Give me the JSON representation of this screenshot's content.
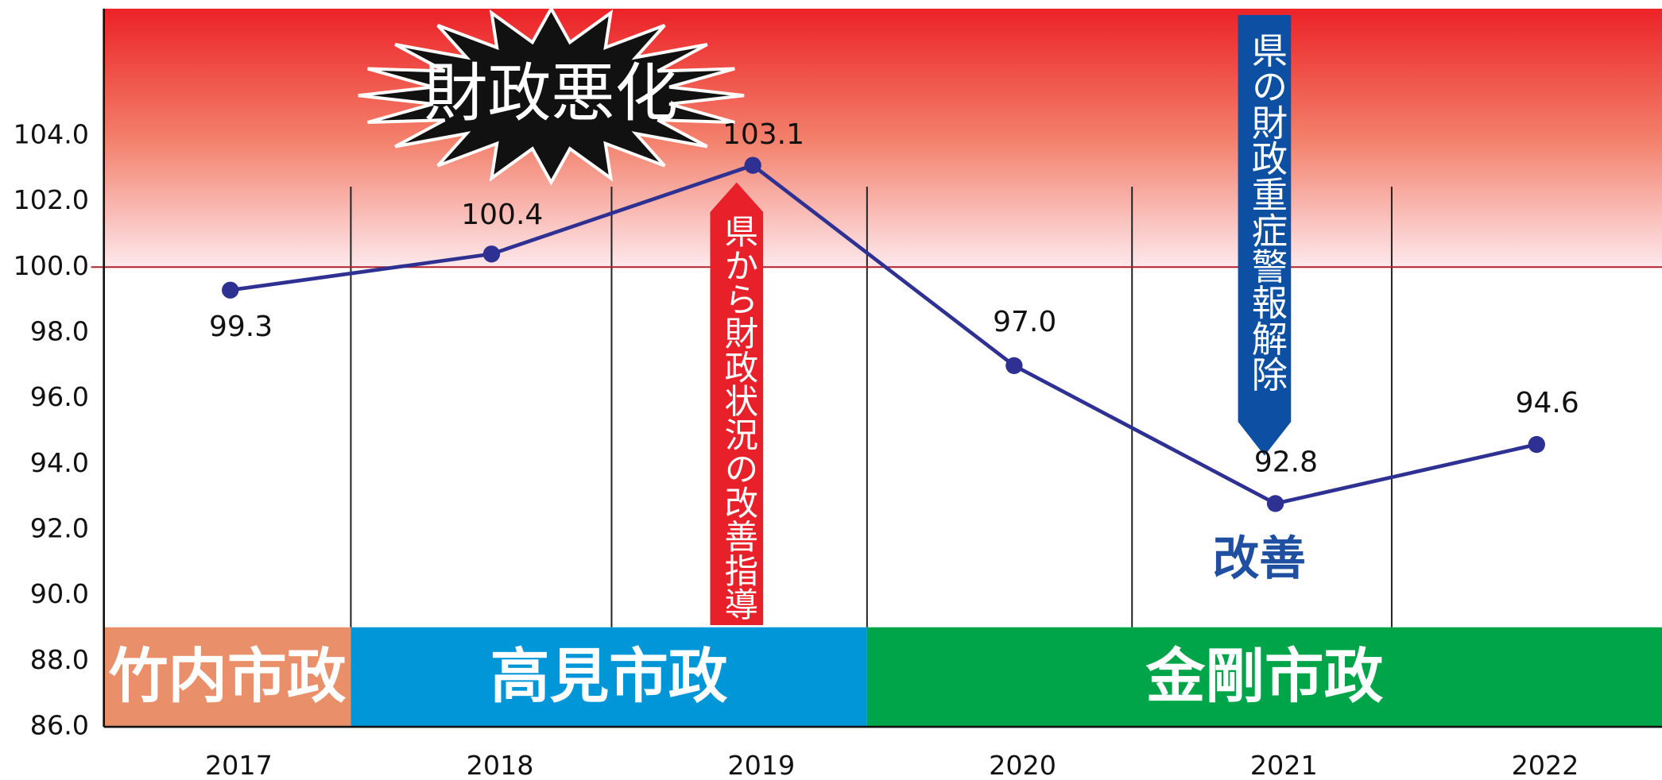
{
  "chart_data": {
    "type": "line",
    "categories": [
      "2017",
      "2018",
      "2019",
      "2020",
      "2021",
      "2022"
    ],
    "series": [
      {
        "color": "#2e3192",
        "values": [
          99.3,
          100.4,
          103.1,
          97.0,
          92.8,
          94.6
        ],
        "value_labels": [
          "99.3",
          "100.4",
          "103.1",
          "97.0",
          "92.8",
          "94.6"
        ]
      }
    ],
    "ylim": [
      86,
      108
    ],
    "yticks": [
      {
        "value": 86,
        "label": "86.0"
      },
      {
        "value": 88,
        "label": "88.0"
      },
      {
        "value": 90,
        "label": "90.0"
      },
      {
        "value": 92,
        "label": "92.0"
      },
      {
        "value": 94,
        "label": "94.0"
      },
      {
        "value": 96,
        "label": "96.0"
      },
      {
        "value": 98,
        "label": "98.0"
      },
      {
        "value": 100,
        "label": "100.0"
      },
      {
        "value": 102,
        "label": "102.0"
      },
      {
        "value": 104,
        "label": "104.0"
      }
    ],
    "reference_line": {
      "value": 100,
      "color": "#b0202a"
    },
    "periods": [
      {
        "label": "竹内市政",
        "color": "#e9906a"
      },
      {
        "label": "高見市政",
        "color": "#0096d8"
      },
      {
        "label": "金剛市政",
        "color": "#00a54a"
      }
    ],
    "annotations": {
      "burst": "財政悪化",
      "red_arrow": "県から財政状況の改善指導",
      "blue_arrow": "県の財政重症警報解除",
      "improve": "改善"
    }
  }
}
